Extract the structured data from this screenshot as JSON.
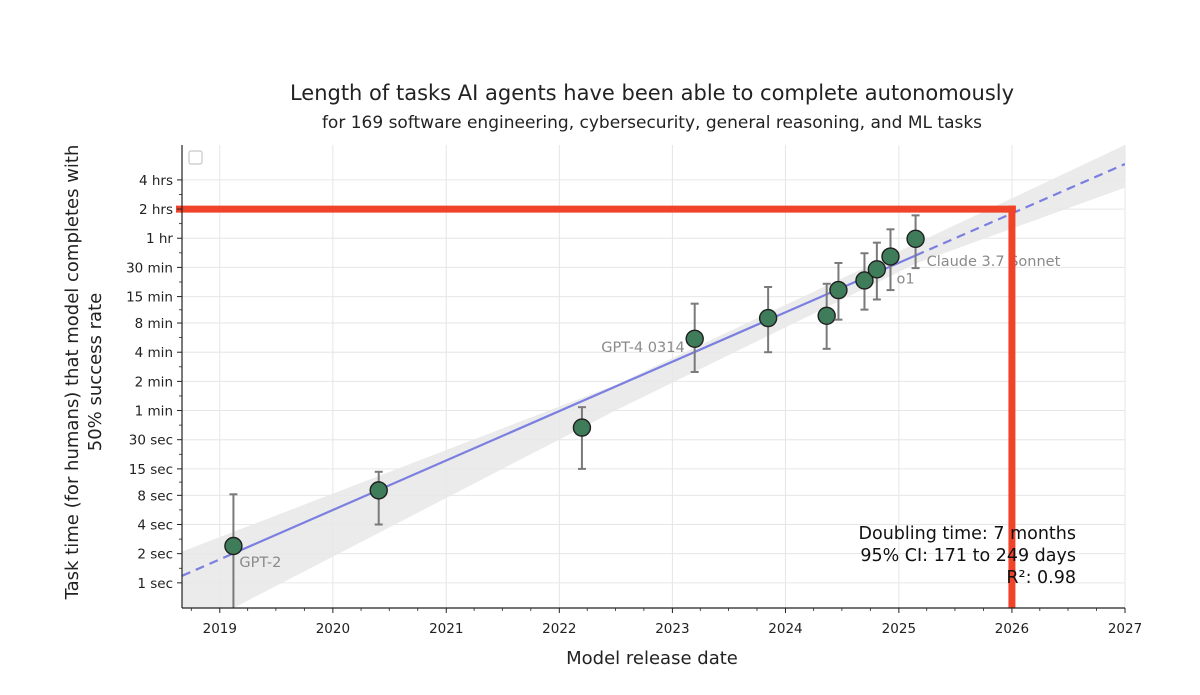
{
  "chart_data": {
    "type": "scatter",
    "title": "Length of tasks AI agents have been able to complete autonomously",
    "subtitle": "for 169 software engineering, cybersecurity, general reasoning, and ML tasks",
    "xlabel": "Model release date",
    "ylabel_line1": "Task time (for humans) that model completes with",
    "ylabel_line2": "50% success rate",
    "x_scale": "date",
    "y_scale": "log",
    "xlim": [
      "2018-09-01",
      "2027-01-01"
    ],
    "ylim_seconds": [
      0.55,
      33000
    ],
    "x_ticks": [
      {
        "label": "2019",
        "date": "2019-01-01"
      },
      {
        "label": "2020",
        "date": "2020-01-01"
      },
      {
        "label": "2021",
        "date": "2021-01-01"
      },
      {
        "label": "2022",
        "date": "2022-01-01"
      },
      {
        "label": "2023",
        "date": "2023-01-01"
      },
      {
        "label": "2024",
        "date": "2024-01-01"
      },
      {
        "label": "2025",
        "date": "2025-01-01"
      },
      {
        "label": "2026",
        "date": "2026-01-01"
      },
      {
        "label": "2027",
        "date": "2027-01-01"
      }
    ],
    "y_ticks": [
      {
        "label": "1 sec",
        "seconds": 1
      },
      {
        "label": "2 sec",
        "seconds": 2
      },
      {
        "label": "4 sec",
        "seconds": 4
      },
      {
        "label": "8 sec",
        "seconds": 8
      },
      {
        "label": "15 sec",
        "seconds": 15
      },
      {
        "label": "30 sec",
        "seconds": 30
      },
      {
        "label": "1 min",
        "seconds": 60
      },
      {
        "label": "2 min",
        "seconds": 120
      },
      {
        "label": "4 min",
        "seconds": 240
      },
      {
        "label": "8 min",
        "seconds": 480
      },
      {
        "label": "15 min",
        "seconds": 900
      },
      {
        "label": "30 min",
        "seconds": 1800
      },
      {
        "label": "1 hr",
        "seconds": 3600
      },
      {
        "label": "2 hrs",
        "seconds": 7200
      },
      {
        "label": "4 hrs",
        "seconds": 14400
      }
    ],
    "grid": true,
    "points": [
      {
        "date": "2019-02-14",
        "seconds": 2.4,
        "lo": 0.5,
        "hi": 8.2,
        "label": "GPT-2"
      },
      {
        "date": "2020-05-28",
        "seconds": 9,
        "lo": 4,
        "hi": 14
      },
      {
        "date": "2022-03-15",
        "seconds": 40,
        "lo": 15,
        "hi": 65
      },
      {
        "date": "2023-03-14",
        "seconds": 330,
        "lo": 150,
        "hi": 760,
        "label": "GPT-4 0314"
      },
      {
        "date": "2023-11-06",
        "seconds": 540,
        "lo": 240,
        "hi": 1130
      },
      {
        "date": "2024-05-13",
        "seconds": 570,
        "lo": 260,
        "hi": 1220
      },
      {
        "date": "2024-06-20",
        "seconds": 1050,
        "lo": 520,
        "hi": 2000
      },
      {
        "date": "2024-09-12",
        "seconds": 1320,
        "lo": 660,
        "hi": 2520
      },
      {
        "date": "2024-10-22",
        "seconds": 1720,
        "lo": 840,
        "hi": 3240
      },
      {
        "date": "2024-12-05",
        "seconds": 2330,
        "lo": 1050,
        "hi": 4450,
        "label": "o1"
      },
      {
        "date": "2025-02-24",
        "seconds": 3550,
        "lo": 1770,
        "hi": 6200,
        "label": "Claude 3.7 Sonnet"
      }
    ],
    "trend": {
      "start": {
        "date": "2018-09-01",
        "seconds": 1.18
      },
      "end": {
        "date": "2027-01-01",
        "seconds": 21000
      },
      "solid_range": [
        "2019-02-14",
        "2025-02-24"
      ],
      "color": "#7b7fe0"
    },
    "ci_band": {
      "color": "#e8e8e8",
      "upper": [
        {
          "date": "2018-09-01",
          "seconds": 2.1
        },
        {
          "date": "2022-07-01",
          "seconds": 110
        },
        {
          "date": "2027-01-01",
          "seconds": 33000
        }
      ],
      "lower": [
        {
          "date": "2019-02-14",
          "seconds": 0.55
        },
        {
          "date": "2022-07-01",
          "seconds": 60
        },
        {
          "date": "2025-03-01",
          "seconds": 2000
        },
        {
          "date": "2027-01-01",
          "seconds": 12000
        }
      ]
    },
    "marker_color": "#3f7d5a",
    "highlight": {
      "date": "2026-01-01",
      "seconds": 7200,
      "color": "#f0432a"
    },
    "stats": {
      "line1": "Doubling time: 7 months",
      "line2": "95% CI: 171 to 249 days",
      "line3": "R²: 0.98"
    }
  }
}
